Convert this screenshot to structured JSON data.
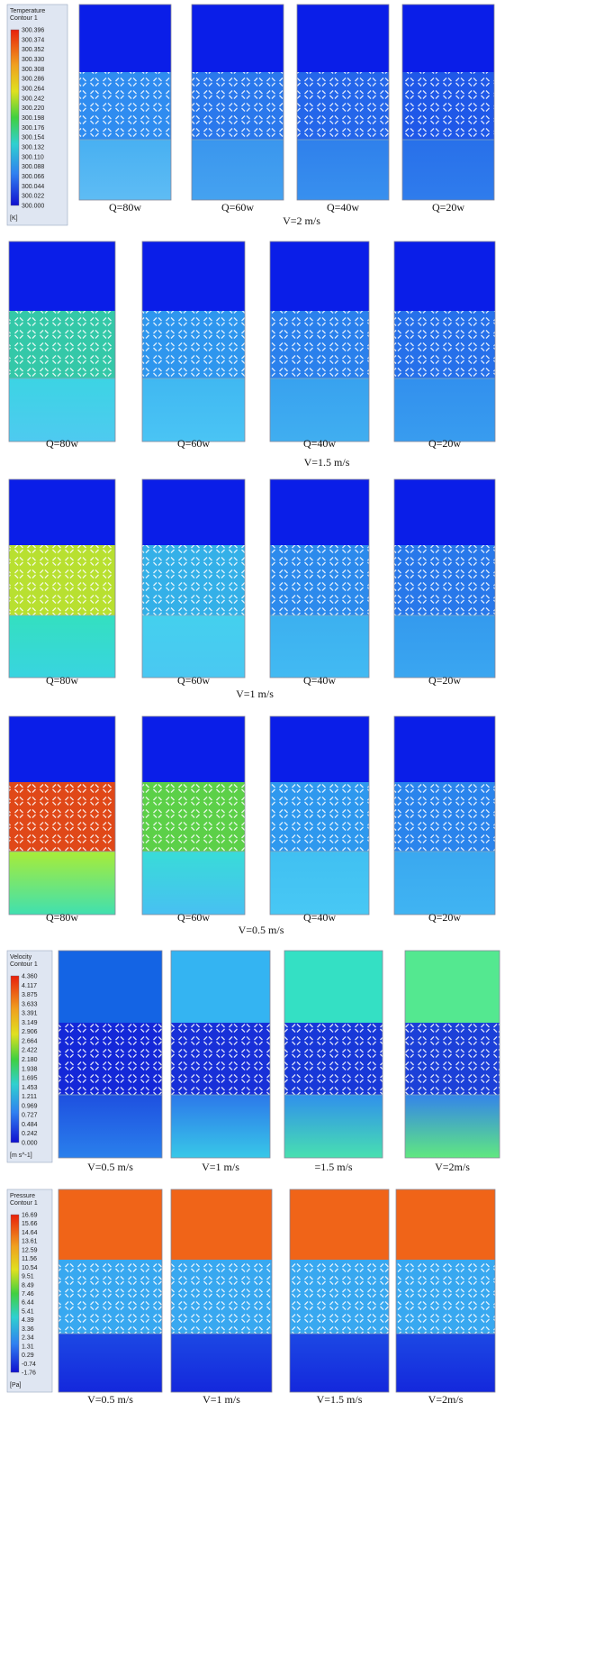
{
  "rows": [
    {
      "legend": {
        "title": "Temperature",
        "subtitle": "Contour 1",
        "labels": [
          "300.396",
          "300.374",
          "300.352",
          "300.330",
          "300.308",
          "300.286",
          "300.264",
          "300.242",
          "300.220",
          "300.198",
          "300.176",
          "300.154",
          "300.132",
          "300.110",
          "300.088",
          "300.066",
          "300.044",
          "300.022",
          "300.000"
        ],
        "unit": "[K]"
      },
      "captions": [
        "Q=80w",
        "Q=60w",
        "Q=40w",
        "Q=20w"
      ],
      "group": "V=2 m/s"
    },
    {
      "captions": [
        "Q=80w",
        "Q=60w",
        "Q=40w",
        "Q=20w"
      ],
      "group": "V=1.5 m/s"
    },
    {
      "captions": [
        "Q=80w",
        "Q=60w",
        "Q=40w",
        "Q=20w"
      ],
      "group": "V=1 m/s"
    },
    {
      "captions": [
        "Q=80w",
        "Q=60w",
        "Q=40w",
        "Q=20w"
      ],
      "group": "V=0.5 m/s"
    },
    {
      "legend": {
        "title": "Velocity",
        "subtitle": "Contour 1",
        "labels": [
          "4.360",
          "4.117",
          "3.875",
          "3.633",
          "3.391",
          "3.149",
          "2.906",
          "2.664",
          "2.422",
          "2.180",
          "1.938",
          "1.695",
          "1.453",
          "1.211",
          "0.969",
          "0.727",
          "0.484",
          "0.242",
          "0.000"
        ],
        "unit": "[m s^-1]"
      },
      "captions": [
        "V=0.5 m/s",
        "V=1 m/s",
        "=1.5 m/s",
        "V=2m/s"
      ]
    },
    {
      "legend": {
        "title": "Pressure",
        "subtitle": "Contour 1",
        "labels": [
          "16.69",
          "15.66",
          "14.64",
          "13.61",
          "12.59",
          "11.56",
          "10.54",
          "9.51",
          "8.49",
          "7.46",
          "6.44",
          "5.41",
          "4.39",
          "3.36",
          "2.34",
          "1.31",
          "0.29",
          "-0.74",
          "-1.76"
        ],
        "unit": "[Pa]"
      },
      "captions": [
        "V=0.5 m/s",
        "V=1 m/s",
        "V=1.5 m/s",
        "V=2m/s"
      ]
    }
  ]
}
